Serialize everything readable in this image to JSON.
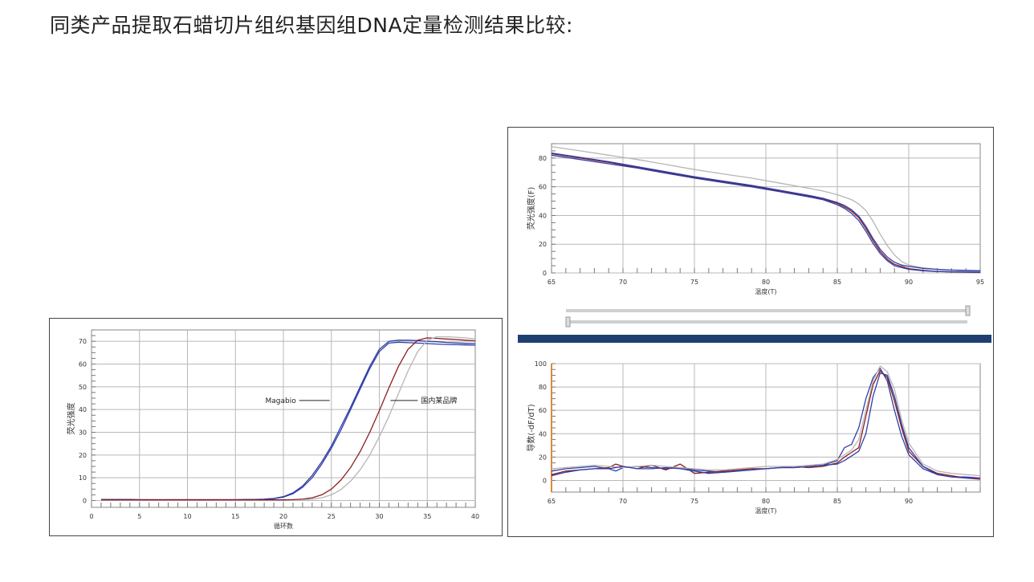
{
  "page": {
    "title": "同类产品提取石蜡切片组织基因组DNA定量检测结果比较:"
  },
  "colors": {
    "series_blue": "#2f3fa8",
    "series_red": "#8b1e1e",
    "series_gray": "#b5b5b5",
    "divider_bar": "#1f3f73",
    "axis_orange": "#d98b3a"
  },
  "chart_data": [
    {
      "type": "line",
      "xlabel": "循环数",
      "ylabel": "荧光强度",
      "xlim": [
        0,
        40
      ],
      "ylim": [
        -3,
        75
      ],
      "xticks": [
        0,
        5,
        10,
        15,
        20,
        25,
        30,
        35,
        40
      ],
      "yticks": [
        0,
        10,
        20,
        30,
        40,
        50,
        60,
        70
      ],
      "grid": true,
      "annotations": [
        {
          "text": "Magabio",
          "x": 25.5,
          "y": 44
        },
        {
          "text": "国内某品牌",
          "x": 33.5,
          "y": 44
        }
      ],
      "series": [
        {
          "color": "series_blue",
          "x": [
            1,
            2,
            3,
            4,
            5,
            6,
            7,
            8,
            9,
            10,
            11,
            12,
            13,
            14,
            15,
            16,
            17,
            18,
            19,
            20,
            21,
            22,
            23,
            24,
            25,
            26,
            27,
            28,
            29,
            30,
            31,
            32,
            33,
            34,
            35,
            36,
            37,
            38,
            39,
            40
          ],
          "y": [
            0.5,
            0.5,
            0.5,
            0.5,
            0.4,
            0.4,
            0.4,
            0.4,
            0.4,
            0.4,
            0.4,
            0.4,
            0.4,
            0.4,
            0.4,
            0.5,
            0.5,
            0.6,
            0.9,
            1.7,
            3.4,
            6.4,
            11,
            17,
            24,
            32.5,
            41,
            50,
            59,
            66.5,
            70,
            70.5,
            70.5,
            70.3,
            70,
            69.8,
            69.5,
            69.3,
            69.1,
            69
          ]
        },
        {
          "color": "series_blue",
          "x": [
            18,
            19,
            20,
            21,
            22,
            23,
            24,
            25,
            26,
            27,
            28,
            29,
            30,
            31,
            32,
            33,
            34,
            35,
            36,
            37,
            38,
            39,
            40
          ],
          "y": [
            0.6,
            0.8,
            1.5,
            3,
            5.8,
            10,
            16,
            23,
            31,
            40,
            49,
            58,
            65.5,
            69.2,
            69.6,
            69.4,
            69.2,
            69,
            68.8,
            68.6,
            68.5,
            68.4,
            68.3
          ]
        },
        {
          "color": "series_red",
          "x": [
            1,
            2,
            3,
            4,
            5,
            6,
            7,
            8,
            9,
            10,
            11,
            12,
            13,
            14,
            15,
            16,
            17,
            18,
            19,
            20,
            21,
            22,
            23,
            24,
            25,
            26,
            27,
            28,
            29,
            30,
            31,
            32,
            33,
            34,
            35,
            36,
            37,
            38,
            39,
            40
          ],
          "y": [
            0.3,
            0.3,
            0.3,
            0.3,
            0.3,
            0.3,
            0.3,
            0.3,
            0.3,
            0.3,
            0.3,
            0.3,
            0.3,
            0.3,
            0.3,
            0.3,
            0.3,
            0.3,
            0.3,
            0.3,
            0.4,
            0.6,
            1.2,
            2.5,
            5,
            9,
            14.5,
            21.5,
            30,
            39.5,
            49.5,
            59,
            66.5,
            70.5,
            71.5,
            71.3,
            71,
            70.8,
            70.5,
            70.2
          ]
        },
        {
          "color": "series_gray",
          "x": [
            22,
            23,
            24,
            25,
            26,
            27,
            28,
            29,
            30,
            31,
            32,
            33,
            34,
            35,
            36,
            37,
            38,
            39,
            40
          ],
          "y": [
            0.3,
            0.6,
            1.2,
            2.5,
            4.8,
            8.5,
            13.5,
            20,
            28,
            37,
            47,
            57,
            65.5,
            70.5,
            72,
            72,
            71.8,
            71.5,
            71
          ]
        }
      ]
    },
    {
      "type": "line",
      "xlabel": "温度(T)",
      "ylabel": "荧光强度(F)",
      "xlim": [
        65,
        95
      ],
      "ylim": [
        0,
        90
      ],
      "xticks": [
        65,
        70,
        75,
        80,
        85,
        90,
        95
      ],
      "yticks": [
        0,
        20,
        40,
        60,
        80
      ],
      "grid": true,
      "series": [
        {
          "color": "series_gray",
          "x": [
            65,
            67,
            69,
            71,
            73,
            75,
            77,
            79,
            81,
            83,
            84,
            85,
            86,
            86.5,
            87,
            87.5,
            88,
            88.5,
            89,
            89.5,
            90,
            91,
            92,
            93,
            94,
            95
          ],
          "y": [
            88,
            85,
            82,
            79,
            75.5,
            72,
            69,
            66,
            62.5,
            59,
            57,
            54.5,
            51,
            48,
            43.5,
            36,
            27,
            19,
            12.5,
            8,
            5.5,
            3.5,
            2.5,
            1.8,
            1.3,
            1
          ]
        },
        {
          "color": "series_red",
          "x": [
            65,
            67,
            69,
            71,
            73,
            75,
            77,
            79,
            81,
            83,
            84,
            85,
            85.5,
            86,
            86.5,
            87,
            87.5,
            88,
            88.5,
            89,
            90,
            91,
            92,
            93,
            94,
            95
          ],
          "y": [
            83,
            80,
            77,
            73.5,
            70,
            66.5,
            63.5,
            60.5,
            57,
            53.5,
            51.5,
            48.5,
            46,
            43,
            38.5,
            31,
            22.5,
            15,
            9.5,
            6,
            3,
            1.8,
            1,
            0.7,
            0.5,
            0.3
          ]
        },
        {
          "color": "series_blue",
          "x": [
            65,
            67,
            69,
            71,
            73,
            75,
            77,
            79,
            81,
            83,
            84,
            85,
            85.5,
            86,
            86.5,
            87,
            87.5,
            88,
            88.5,
            89,
            90,
            91,
            92,
            93,
            94,
            95
          ],
          "y": [
            82,
            79,
            76,
            73,
            69.5,
            66,
            63,
            60,
            56.5,
            53,
            51,
            47.5,
            45,
            41.5,
            36.5,
            29,
            20.5,
            13.5,
            8.5,
            5,
            2.5,
            1.5,
            1,
            0.8,
            0.6,
            0.5
          ]
        },
        {
          "color": "series_blue",
          "x": [
            65,
            67,
            69,
            71,
            73,
            75,
            77,
            79,
            81,
            83,
            84,
            85,
            85.5,
            86,
            86.5,
            87,
            87.5,
            88,
            88.5,
            89,
            89.5,
            90,
            91,
            92,
            93,
            94,
            95
          ],
          "y": [
            83.5,
            80.5,
            77.5,
            74,
            70.5,
            67,
            64,
            61,
            57.5,
            54,
            52,
            49,
            47,
            44,
            39.5,
            32.5,
            24,
            16.5,
            11,
            7.5,
            5.5,
            4.5,
            3.2,
            2.5,
            2,
            1.8,
            1.5
          ]
        }
      ]
    },
    {
      "type": "line",
      "xlabel": "温度(T)",
      "ylabel": "导数(-dF/dT)",
      "xlim": [
        65,
        95
      ],
      "ylim": [
        -10,
        100
      ],
      "xticks": [
        65,
        70,
        75,
        80,
        85,
        90
      ],
      "yticks": [
        0,
        20,
        40,
        60,
        80,
        100
      ],
      "grid": true,
      "series": [
        {
          "color": "series_blue",
          "x": [
            65,
            66,
            67,
            68,
            69,
            69.5,
            70,
            71,
            72,
            73,
            74,
            75,
            76,
            77,
            78,
            79,
            80,
            81,
            82,
            83,
            84,
            85,
            85.5,
            86,
            86.5,
            87,
            87.5,
            88,
            88.5,
            89,
            89.5,
            90,
            91,
            92,
            93,
            94,
            95
          ],
          "y": [
            8,
            10,
            11,
            12,
            10,
            8,
            11,
            12,
            11,
            10,
            11,
            9,
            8,
            7,
            8,
            9,
            10,
            11,
            11,
            12,
            13,
            17,
            28,
            31,
            45,
            70,
            88,
            96,
            85,
            60,
            38,
            22,
            10,
            5,
            3,
            3,
            2
          ]
        },
        {
          "color": "series_red",
          "x": [
            65,
            66,
            67,
            68,
            69,
            69.5,
            70,
            71,
            72,
            73,
            74,
            75,
            76,
            77,
            78,
            79,
            80,
            81,
            82,
            83,
            84,
            85,
            85.5,
            86,
            86.5,
            87,
            87.5,
            88,
            88.5,
            89,
            89.5,
            90,
            91,
            92,
            93,
            94,
            95
          ],
          "y": [
            5,
            8,
            9,
            10,
            11,
            14,
            12,
            10,
            13,
            9,
            14,
            6,
            7,
            8,
            9,
            10,
            10,
            11,
            12,
            11,
            12,
            15,
            20,
            24,
            28,
            55,
            82,
            94,
            88,
            68,
            45,
            25,
            12,
            6,
            4,
            2,
            1
          ]
        },
        {
          "color": "series_gray",
          "x": [
            65,
            66,
            67,
            68,
            69,
            70,
            71,
            72,
            73,
            74,
            75,
            76,
            77,
            78,
            79,
            80,
            81,
            82,
            83,
            84,
            85,
            85.5,
            86,
            86.5,
            87,
            87.5,
            88,
            88.5,
            89,
            89.5,
            90,
            91,
            92,
            93,
            94,
            95
          ],
          "y": [
            10,
            11,
            12,
            13,
            12,
            11,
            12,
            13,
            12,
            11,
            10,
            9,
            9,
            10,
            11,
            12,
            12,
            12,
            13,
            14,
            18,
            22,
            26,
            35,
            60,
            85,
            98,
            93,
            78,
            52,
            32,
            14,
            8,
            6,
            5,
            4
          ]
        },
        {
          "color": "series_blue",
          "x": [
            65,
            66,
            67,
            68,
            69,
            70,
            71,
            72,
            73,
            74,
            75,
            76,
            77,
            78,
            79,
            80,
            81,
            82,
            83,
            84,
            85,
            85.5,
            86,
            86.5,
            87,
            87.5,
            88,
            88.5,
            89,
            89.5,
            90,
            91,
            92,
            93,
            94,
            95
          ],
          "y": [
            4,
            7,
            9,
            10,
            10,
            12,
            10,
            10,
            11,
            10,
            8,
            6,
            7,
            8,
            9,
            10,
            11,
            11,
            12,
            13,
            14,
            17,
            21,
            25,
            40,
            72,
            92,
            90,
            72,
            48,
            28,
            12,
            5,
            3,
            2,
            2
          ]
        }
      ]
    }
  ]
}
